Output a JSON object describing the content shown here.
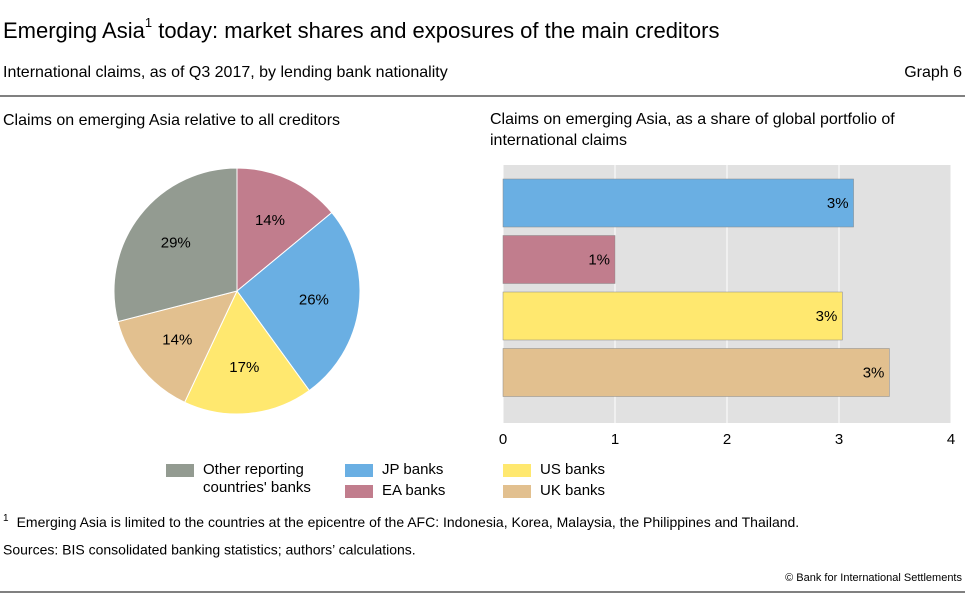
{
  "title_parts": [
    "Emerging Asia",
    "1",
    " today: market shares and exposures of the main creditors"
  ],
  "subtitle": "International claims, as of Q3 2017, by lending bank nationality",
  "graph_label": "Graph 6",
  "footnote": {
    "marker": "1",
    "text": "Emerging Asia is limited to the countries at the epicentre of the AFC: Indonesia, Korea, Malaysia, the Philippines and Thailand."
  },
  "sources": "Sources: BIS consolidated banking statistics; authors’ calculations.",
  "copyright": "© Bank for International Settlements",
  "chart_data": [
    {
      "type": "pie",
      "title": "Claims on emerging Asia relative to all creditors",
      "categories": [
        "EA banks",
        "JP banks",
        "US banks",
        "UK banks",
        "Other reporting countries' banks"
      ],
      "values": [
        14,
        26,
        17,
        14,
        29
      ],
      "value_labels": [
        "14%",
        "26%",
        "17%",
        "14%",
        "29%"
      ],
      "colors": [
        "#c17d8d",
        "#6aafe3",
        "#ffe86f",
        "#e2c08f",
        "#939b91"
      ]
    },
    {
      "type": "hbar",
      "title": "Claims on emerging Asia, as a share of global portfolio of international claims",
      "values": [
        3.13,
        1.0,
        3.03,
        3.45
      ],
      "value_labels": [
        "3%",
        "1%",
        "3%",
        "3%"
      ],
      "colors": [
        "#6aafe3",
        "#c17d8d",
        "#ffe86f",
        "#e2c08f"
      ],
      "xlim": [
        0,
        4
      ],
      "xticks": [
        0,
        1,
        2,
        3,
        4
      ],
      "grid": true
    }
  ]
}
